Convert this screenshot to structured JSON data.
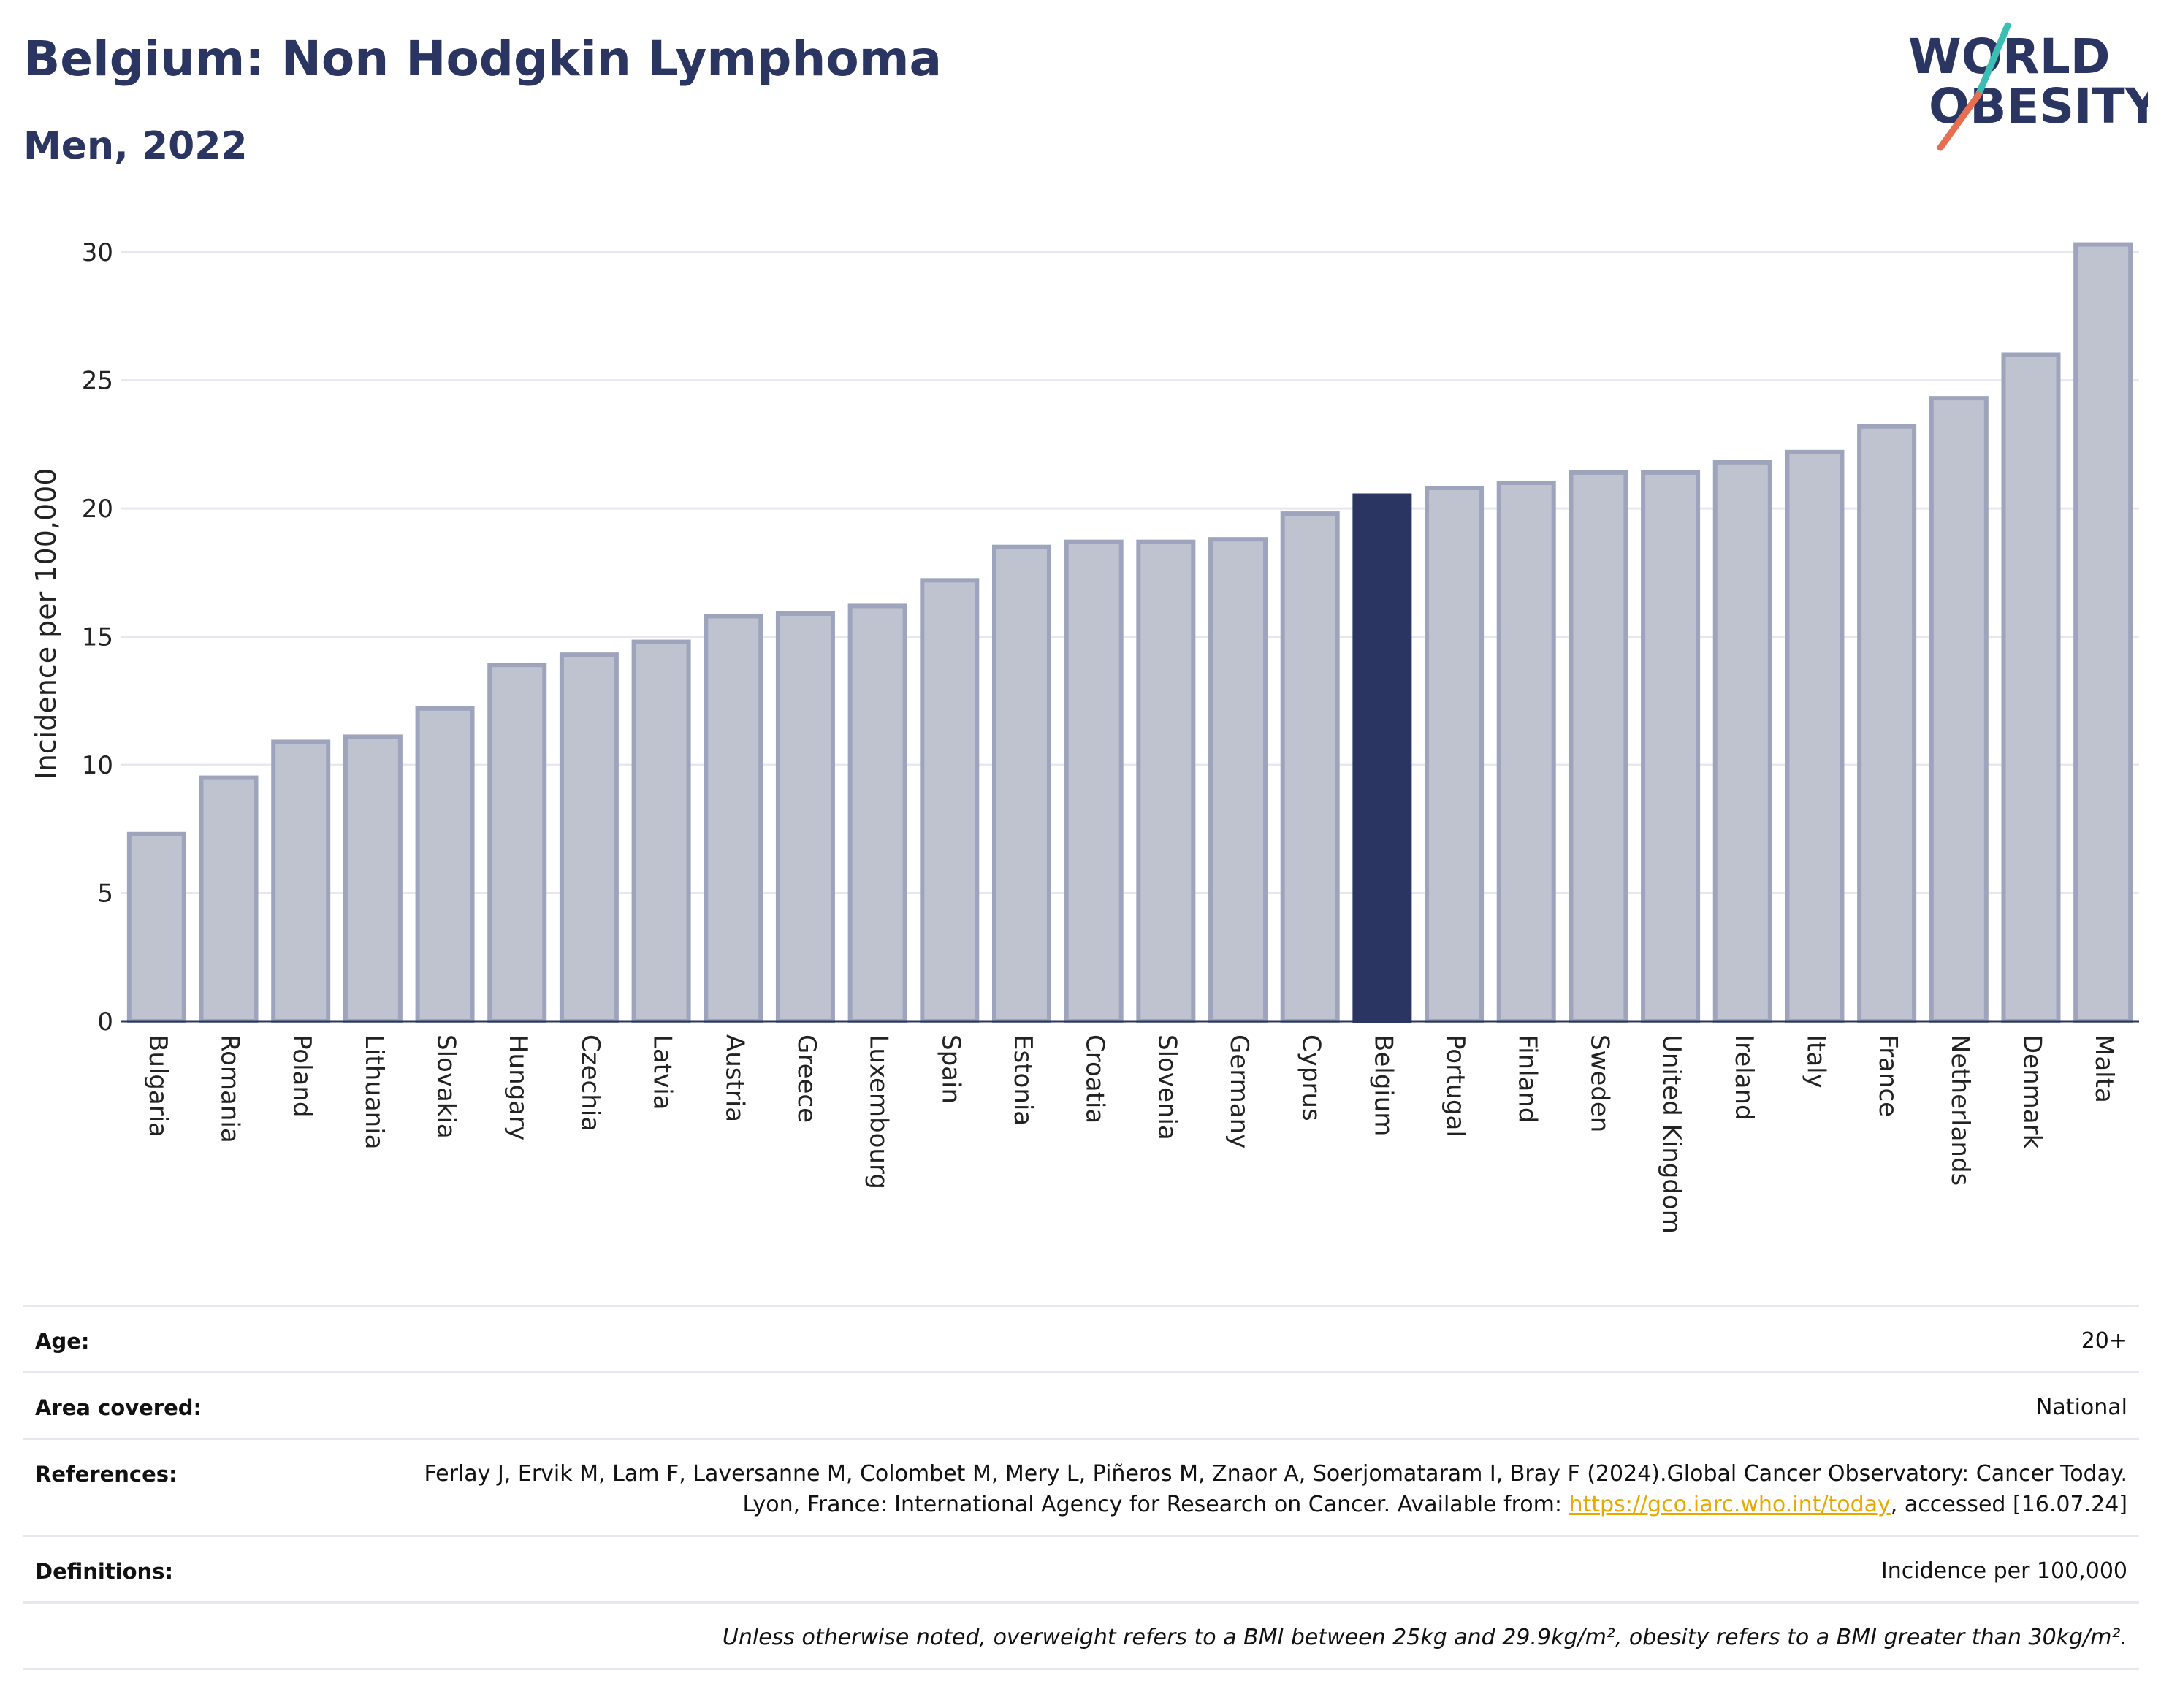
{
  "header": {
    "title": "Belgium: Non Hodgkin Lymphoma",
    "subtitle": "Men, 2022"
  },
  "logo": {
    "line1": "WORLD",
    "line2": "OBESITY",
    "stroke_colors": [
      "#3bbfb4",
      "#e76f51"
    ]
  },
  "chart_data": {
    "type": "bar",
    "categories": [
      "Bulgaria",
      "Romania",
      "Poland",
      "Lithuania",
      "Slovakia",
      "Hungary",
      "Czechia",
      "Latvia",
      "Austria",
      "Greece",
      "Luxembourg",
      "Spain",
      "Estonia",
      "Croatia",
      "Slovenia",
      "Germany",
      "Cyprus",
      "Belgium",
      "Portugal",
      "Finland",
      "Sweden",
      "United Kingdom",
      "Ireland",
      "Italy",
      "France",
      "Netherlands",
      "Denmark",
      "Malta"
    ],
    "values": [
      7.3,
      9.5,
      10.9,
      11.1,
      12.2,
      13.9,
      14.3,
      14.8,
      15.8,
      15.9,
      16.2,
      17.2,
      18.5,
      18.7,
      18.7,
      18.8,
      19.8,
      20.5,
      20.8,
      21.0,
      21.4,
      21.4,
      21.8,
      22.2,
      23.2,
      24.3,
      26.0,
      30.3
    ],
    "highlight": "Belgium",
    "title": "",
    "xlabel": "",
    "ylabel": "Incidence per 100,000",
    "ylim": [
      0,
      31
    ],
    "yticks": [
      0,
      5,
      10,
      15,
      20,
      25,
      30
    ],
    "grid": true,
    "colors": {
      "bar": "#bfc3d0",
      "bar_edge": "#9ea4bb",
      "highlight": "#2b3561",
      "grid": "#e6e8f0",
      "axis": "#2b3561"
    }
  },
  "info": {
    "age": {
      "label": "Age:",
      "value": "20+"
    },
    "area": {
      "label": "Area covered:",
      "value": "National"
    },
    "references": {
      "label": "References:",
      "text_before": "Ferlay J, Ervik M, Lam F, Laversanne M, Colombet M, Mery L, Piñeros M, Znaor A, Soerjomataram I, Bray F (2024).Global Cancer Observatory: Cancer Today. Lyon, France: International Agency for Research on Cancer. Available from: ",
      "link": "https://gco.iarc.who.int/today",
      "text_after": ", accessed [16.07.24]"
    },
    "definitions": {
      "label": "Definitions:",
      "value": "Incidence per 100,000"
    },
    "note": "Unless otherwise noted, overweight refers to a BMI between 25kg and 29.9kg/m², obesity refers to a BMI greater than 30kg/m²."
  }
}
